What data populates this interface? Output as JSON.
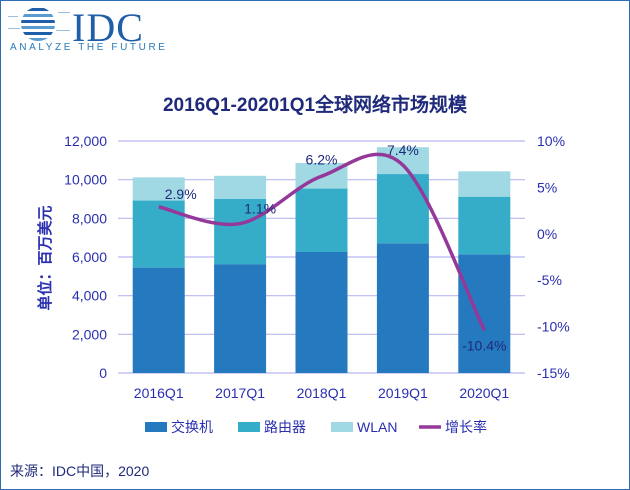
{
  "logo": {
    "brand": "IDC",
    "tagline": "ANALYZE THE FUTURE"
  },
  "source": "来源：IDC中国，2020",
  "chart_data": {
    "type": "bar",
    "stacked": true,
    "title": "2016Q1-20201Q1全球网络市场规模",
    "ylabel": "单位：百万美元",
    "categories": [
      "2016Q1",
      "2017Q1",
      "2018Q1",
      "2019Q1",
      "2020Q1"
    ],
    "ylim": [
      0,
      12000
    ],
    "yticks": [
      "0",
      "2,000",
      "4,000",
      "6,000",
      "8,000",
      "10,000",
      "12,000"
    ],
    "y2lim": [
      -15,
      10
    ],
    "y2ticks": [
      "-15%",
      "-10%",
      "-5%",
      "0%",
      "5%",
      "10%"
    ],
    "grid": true,
    "legend_position": "bottom",
    "series": [
      {
        "name": "交换机",
        "type": "bar",
        "color": "#2579be",
        "values": [
          5450,
          5630,
          6260,
          6710,
          6140
        ]
      },
      {
        "name": "路由器",
        "type": "bar",
        "color": "#36adc8",
        "values": [
          3470,
          3370,
          3280,
          3580,
          2980
        ]
      },
      {
        "name": "WLAN",
        "type": "bar",
        "color": "#a0d8e3",
        "values": [
          1200,
          1200,
          1320,
          1390,
          1310
        ]
      },
      {
        "name": "增长率",
        "type": "line",
        "axis": "right",
        "color": "#94389a",
        "values": [
          2.9,
          1.1,
          6.2,
          7.4,
          -10.4
        ],
        "labels": [
          "2.9%",
          "1.1%",
          "6.2%",
          "7.4%",
          "-10.4%"
        ]
      }
    ]
  }
}
